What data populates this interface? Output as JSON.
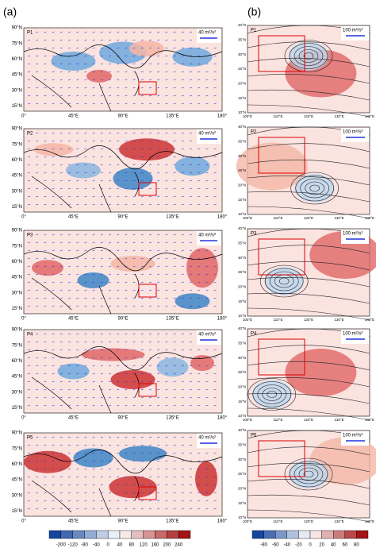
{
  "panels": {
    "a": "(a)",
    "b": "(b)"
  },
  "left": {
    "lat_ticks": [
      "90°N",
      "75°N",
      "60°N",
      "45°N",
      "30°N",
      "15°N"
    ],
    "lon_ticks": [
      "0°",
      "45°E",
      "90°E",
      "135°E",
      "180°"
    ],
    "maps": [
      {
        "label": "P1",
        "ref": "40 m²/s²"
      },
      {
        "label": "P2",
        "ref": "40 m²/s²"
      },
      {
        "label": "P3",
        "ref": "40 m²/s²"
      },
      {
        "label": "P4",
        "ref": "40 m²/s²"
      },
      {
        "label": "P5",
        "ref": "40 m²/s²"
      }
    ],
    "colorbar": [
      -200,
      -120,
      -80,
      -40,
      0,
      40,
      80,
      120,
      160,
      200,
      240
    ]
  },
  "right": {
    "lat_ticks": [
      "40°N",
      "35°N",
      "30°N",
      "25°N",
      "20°N",
      "15°N",
      "10°N"
    ],
    "lon_ticks": [
      "100°E",
      "110°E",
      "120°E",
      "130°E",
      "140°E"
    ],
    "maps": [
      {
        "label": "P1",
        "ref": "100 m²/s²"
      },
      {
        "label": "P2",
        "ref": "100 m²/s²"
      },
      {
        "label": "P3",
        "ref": "100 m²/s²"
      },
      {
        "label": "P4",
        "ref": "100 m²/s²"
      },
      {
        "label": "P5",
        "ref": "100 m²/s²"
      }
    ],
    "colorbar": [
      -80,
      -60,
      -40,
      -20,
      0,
      20,
      40,
      60,
      80
    ]
  }
}
